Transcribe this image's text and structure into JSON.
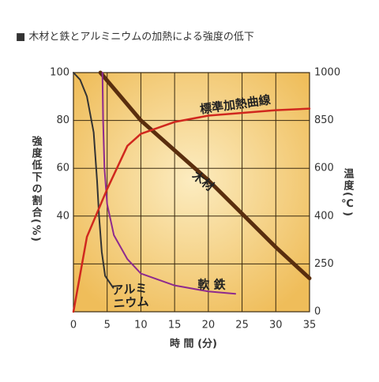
{
  "chart_data": {
    "type": "line",
    "title": "■ 木材と鉄とアルミニウムの加熱による強度の低下",
    "x_label": "時 間 (分)",
    "y_label": "強度低下の割合(%)",
    "y2_label": "温度(℃)",
    "xlim": [
      0,
      35
    ],
    "xticks": [
      0,
      5,
      10,
      15,
      20,
      25,
      30,
      35
    ],
    "ylim": [
      0,
      100
    ],
    "yticks": [
      40,
      60,
      80,
      100
    ],
    "y2lim": [
      0,
      1000
    ],
    "y2ticks": [
      0,
      250,
      400,
      600,
      850,
      1000
    ],
    "grid": true,
    "series": [
      {
        "color": "#5a2e0e",
        "x": [
          4,
          10,
          20,
          25,
          30,
          35
        ],
        "values": [
          100,
          80,
          55,
          41,
          27,
          14
        ]
      },
      {
        "color": "#333333",
        "x": [
          0,
          1,
          2,
          3,
          3.5,
          3.8,
          4.2,
          4.7,
          5.9
        ],
        "values": [
          100,
          97,
          90,
          75,
          55,
          40,
          25,
          15,
          10
        ]
      },
      {
        "color": "#8e2a8e",
        "x": [
          4.3,
          4.4,
          4.6,
          5,
          6,
          8,
          10,
          15,
          20,
          24
        ],
        "values": [
          100,
          80,
          60,
          45,
          32,
          22,
          16,
          11,
          8.5,
          7.5
        ]
      },
      {
        "color": "#d0281e",
        "axis": "y2",
        "x": [
          0,
          2,
          5,
          8,
          10,
          15,
          20,
          30,
          35
        ],
        "values": [
          0,
          335,
          513,
          717,
          780,
          842,
          865,
          882,
          887
        ]
      }
    ],
    "annotations": [
      "標準加熱曲線",
      "木材",
      "軟 鉄",
      "アルミ",
      "ニウム"
    ]
  }
}
